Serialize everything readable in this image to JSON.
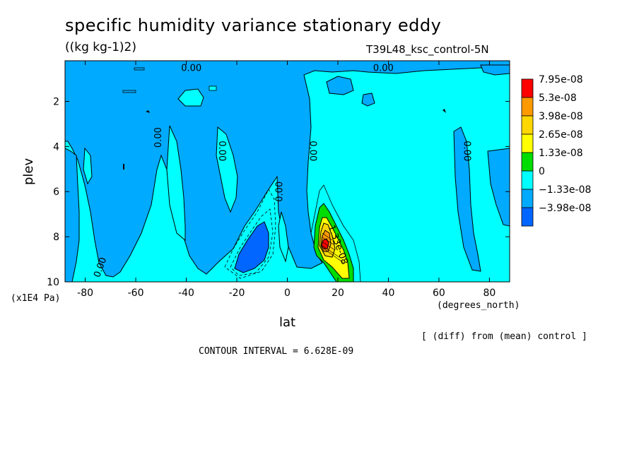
{
  "chart_data": {
    "type": "heatmap",
    "title": "specific humidity variance stationary eddy",
    "units": "((kg kg-1)2)",
    "run_name": "T39L48_ksc_control-5N",
    "xlabel": "lat",
    "ylabel": "plev",
    "x_unit": "(degrees_north)",
    "y_unit": "(x1E4 Pa)",
    "xlim": [
      -88,
      88
    ],
    "ylim": [
      10,
      0.2
    ],
    "x_ticks": [
      "-80",
      "-60",
      "-40",
      "-20",
      "0",
      "20",
      "40",
      "60",
      "80"
    ],
    "y_ticks": [
      "2",
      "4",
      "6",
      "8",
      "10"
    ],
    "contour_labels": [
      "0.00",
      "0.00",
      "0.00",
      "0.00",
      "0.00",
      "0.00",
      "0.00",
      "0.00",
      "0.00",
      "1.33e-08"
    ],
    "legend": {
      "placement": "right",
      "labels": [
        "7.95e-08",
        "5.3e-08",
        "3.98e-08",
        "2.65e-08",
        "1.33e-08",
        "0",
        "−1.33e-08",
        "−3.98e-08"
      ],
      "colors": [
        "#ff0000",
        "#ff9900",
        "#ffd700",
        "#ffff00",
        "#00dd00",
        "#00ffff",
        "#00aaff",
        "#0066ff"
      ]
    },
    "note": "[ (diff) from (mean) control ]",
    "contour_interval": "CONTOUR INTERVAL = 6.628E-09"
  }
}
